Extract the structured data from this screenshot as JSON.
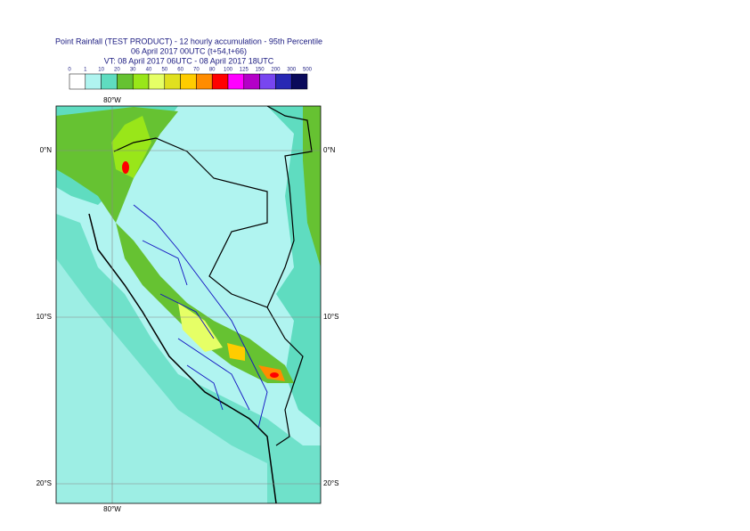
{
  "header": {
    "lines": [
      "Point Rainfall (TEST PRODUCT) - 12 hourly accumulation - 95th Percentile",
      "06 April 2017 00UTC (t+54,t+66)",
      "VT: 08 April 2017 06UTC - 08 April 2017 18UTC"
    ]
  },
  "legend": {
    "labels": [
      "0",
      "1",
      "10",
      "20",
      "30",
      "40",
      "50",
      "60",
      "70",
      "80",
      "100",
      "125",
      "150",
      "200",
      "300",
      "500"
    ],
    "colors": [
      "#ffffff",
      "#b0f4f0",
      "#5fdcc0",
      "#66c232",
      "#99e619",
      "#e6ff66",
      "#e0e020",
      "#ffcc00",
      "#ff8c00",
      "#ff0000",
      "#ff00ff",
      "#b400c8",
      "#7846f0",
      "#2828b4",
      "#0a0a5a"
    ]
  },
  "map": {
    "lon_labels": [
      "80°W"
    ],
    "lat_labels": [
      "0°N",
      "10°S",
      "20°S"
    ]
  }
}
